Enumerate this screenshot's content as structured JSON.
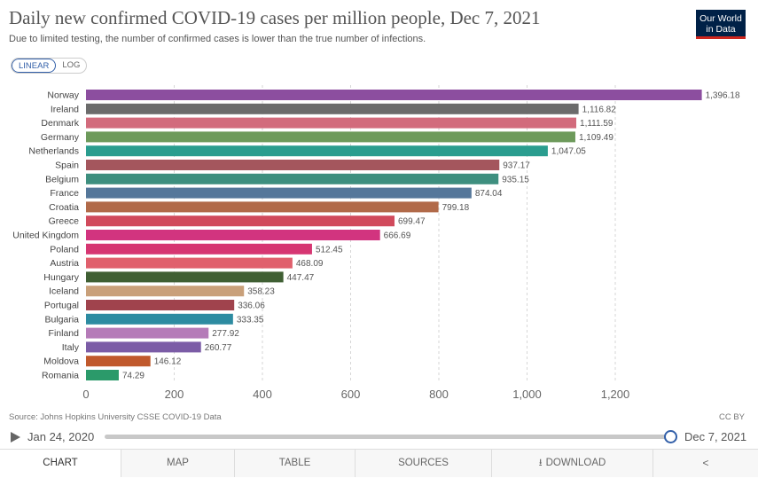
{
  "header": {
    "title": "Daily new confirmed COVID-19 cases per million people, Dec 7, 2021",
    "subtitle": "Due to limited testing, the number of confirmed cases is lower than the true number of infections.",
    "logo_line1": "Our World",
    "logo_line2": "in Data"
  },
  "scale_toggle": {
    "linear": "LINEAR",
    "log": "LOG",
    "selected": "LINEAR"
  },
  "chart_data": {
    "type": "bar",
    "orientation": "horizontal",
    "title": "Daily new confirmed COVID-19 cases per million people, Dec 7, 2021",
    "xlim": [
      0,
      1400
    ],
    "xticks": [
      0,
      200,
      400,
      600,
      800,
      1000,
      1200
    ],
    "xtick_labels": [
      "0",
      "200",
      "400",
      "600",
      "800",
      "1,000",
      "1,200"
    ],
    "grid": "vertical dashed",
    "categories": [
      "Norway",
      "Ireland",
      "Denmark",
      "Germany",
      "Netherlands",
      "Spain",
      "Belgium",
      "France",
      "Croatia",
      "Greece",
      "United Kingdom",
      "Poland",
      "Austria",
      "Hungary",
      "Iceland",
      "Portugal",
      "Bulgaria",
      "Finland",
      "Italy",
      "Moldova",
      "Romania"
    ],
    "values": [
      1396.18,
      1116.82,
      1111.59,
      1109.49,
      1047.05,
      937.17,
      935.15,
      874.04,
      799.18,
      699.47,
      666.69,
      512.45,
      468.09,
      447.47,
      358.23,
      336.06,
      333.35,
      277.92,
      260.77,
      146.12,
      74.29
    ],
    "value_labels": [
      "1,396.18",
      "1,116.82",
      "1,111.59",
      "1,109.49",
      "1,047.05",
      "937.17",
      "935.15",
      "874.04",
      "799.18",
      "699.47",
      "666.69",
      "512.45",
      "468.09",
      "447.47",
      "358.23",
      "336.06",
      "333.35",
      "277.92",
      "260.77",
      "146.12",
      "74.29"
    ],
    "colors": [
      "#8c4e9f",
      "#6b6b6b",
      "#d26b7c",
      "#6d9a5b",
      "#2a9d8f",
      "#a4565d",
      "#3e8f7f",
      "#55779a",
      "#b16a49",
      "#d14a5c",
      "#d2347f",
      "#d63672",
      "#e0606d",
      "#3f5f33",
      "#c9a07a",
      "#a0434d",
      "#2d8ba1",
      "#b57bb8",
      "#7b5ca6",
      "#c0592c",
      "#2b9a6a"
    ]
  },
  "footer": {
    "source": "Source: Johns Hopkins University CSSE COVID-19 Data",
    "license": "CC BY"
  },
  "timeline": {
    "start": "Jan 24, 2020",
    "end": "Dec 7, 2021"
  },
  "tabs": [
    "CHART",
    "MAP",
    "TABLE",
    "SOURCES",
    "DOWNLOAD"
  ]
}
